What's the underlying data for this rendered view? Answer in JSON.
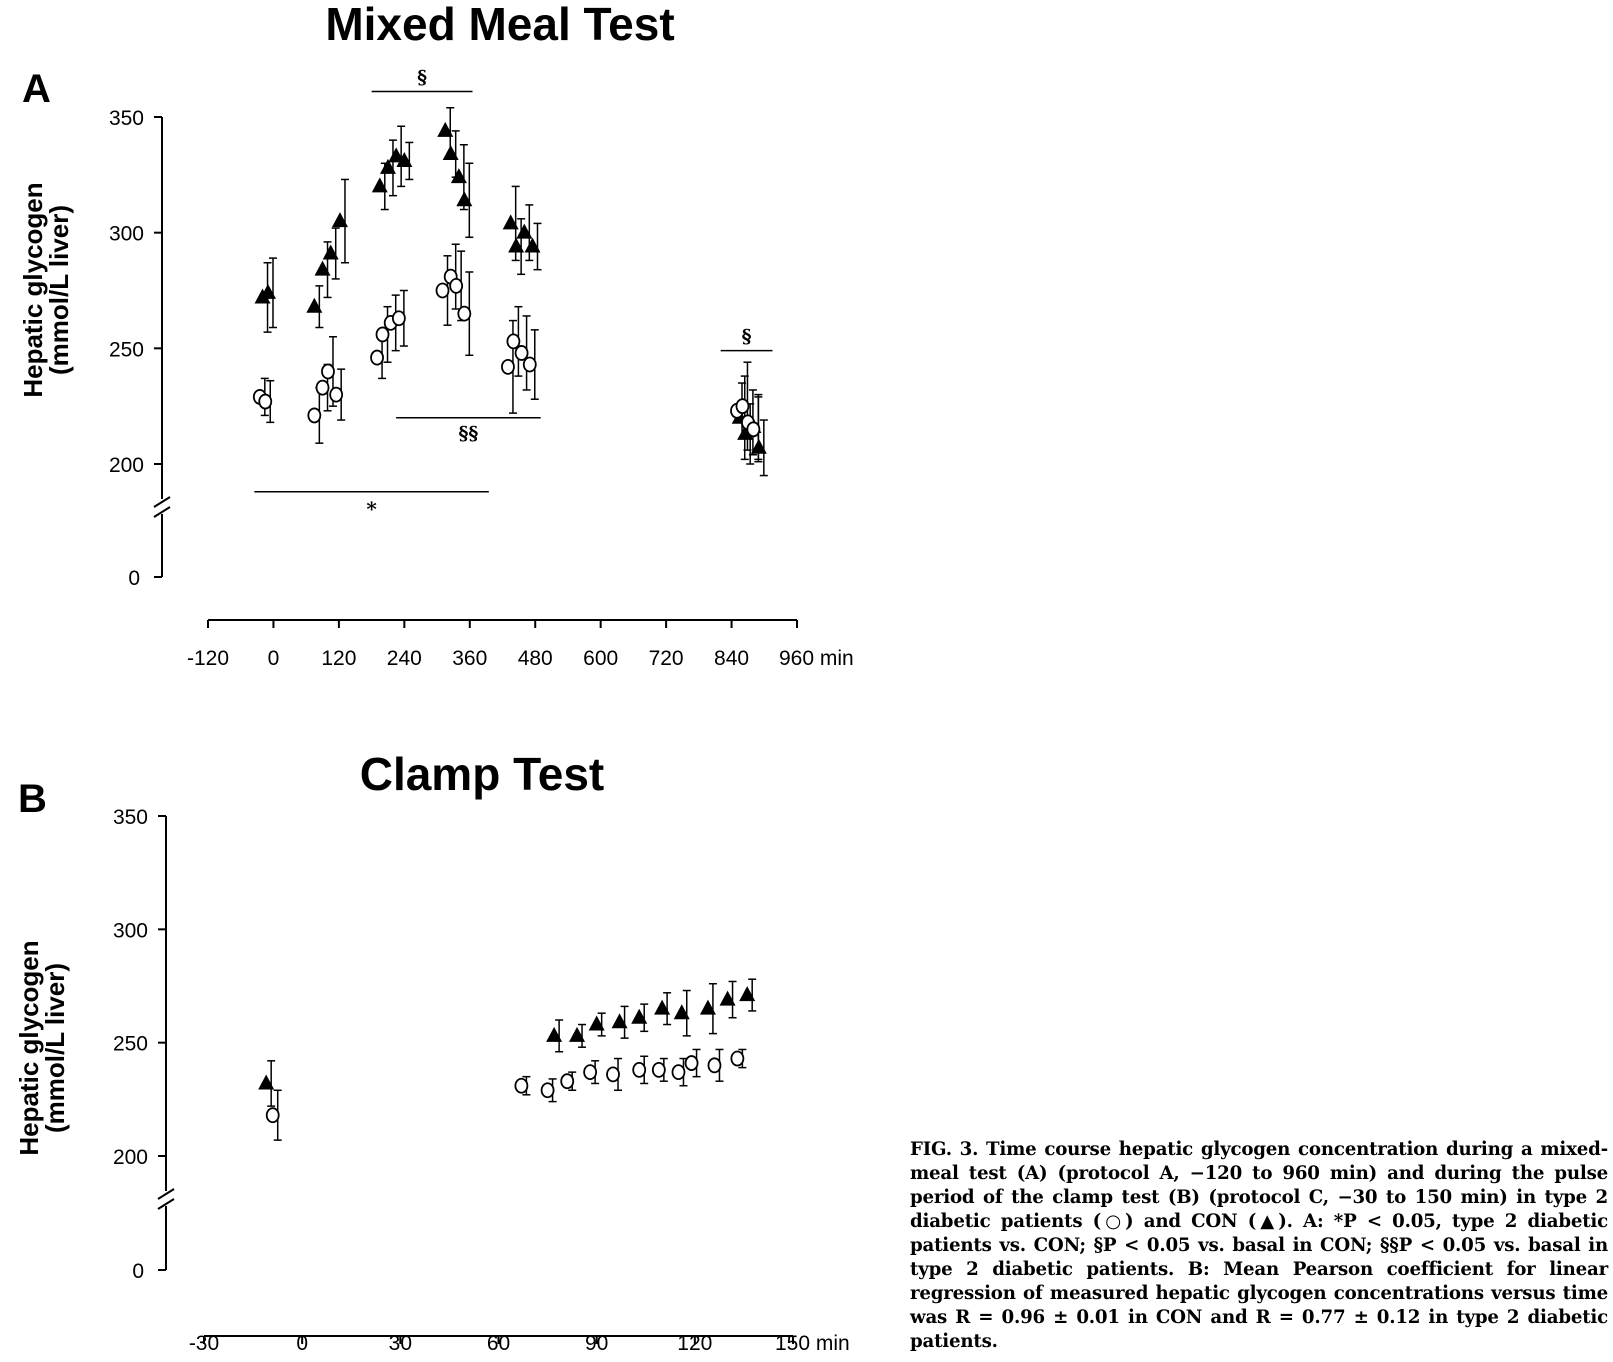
{
  "chart_data": [
    {
      "panel_letter": "A",
      "title": "Mixed Meal Test",
      "type": "scatter",
      "ylabel_line1": "Hepatic glycogen",
      "ylabel_line2": "(mmol/L liver)",
      "xunit": "min",
      "xlim": [
        -120,
        960
      ],
      "ylim": [
        200,
        350
      ],
      "yzero_label": "0",
      "xticks": [
        "-120",
        "0",
        "120",
        "240",
        "360",
        "480",
        "600",
        "720",
        "840",
        "960"
      ],
      "yticks": [
        "200",
        "250",
        "300",
        "350"
      ],
      "series": [
        {
          "marker": "filled-triangle",
          "points": [
            {
              "x": -20,
              "y": 272,
              "err": 15
            },
            {
              "x": -10,
              "y": 274,
              "err": 15
            },
            {
              "x": 75,
              "y": 268,
              "err": 9
            },
            {
              "x": 90,
              "y": 284,
              "err": 12
            },
            {
              "x": 105,
              "y": 291,
              "err": 11
            },
            {
              "x": 122,
              "y": 305,
              "err": 18
            },
            {
              "x": 195,
              "y": 320,
              "err": 10
            },
            {
              "x": 210,
              "y": 328,
              "err": 12
            },
            {
              "x": 225,
              "y": 333,
              "err": 13
            },
            {
              "x": 240,
              "y": 331,
              "err": 8
            },
            {
              "x": 315,
              "y": 344,
              "err": 10
            },
            {
              "x": 325,
              "y": 334,
              "err": 10
            },
            {
              "x": 340,
              "y": 324,
              "err": 14
            },
            {
              "x": 350,
              "y": 314,
              "err": 16
            },
            {
              "x": 435,
              "y": 304,
              "err": 16
            },
            {
              "x": 445,
              "y": 294,
              "err": 12
            },
            {
              "x": 460,
              "y": 300,
              "err": 12
            },
            {
              "x": 475,
              "y": 294,
              "err": 10
            },
            {
              "x": 855,
              "y": 220,
              "err": 18
            },
            {
              "x": 865,
              "y": 213,
              "err": 13
            },
            {
              "x": 880,
              "y": 216,
              "err": 14
            },
            {
              "x": 890,
              "y": 207,
              "err": 12
            }
          ]
        },
        {
          "marker": "open-circle",
          "points": [
            {
              "x": -25,
              "y": 229,
              "err": 8
            },
            {
              "x": -15,
              "y": 227,
              "err": 9
            },
            {
              "x": 75,
              "y": 221,
              "err": 12
            },
            {
              "x": 90,
              "y": 233,
              "err": 10
            },
            {
              "x": 100,
              "y": 240,
              "err": 15
            },
            {
              "x": 115,
              "y": 230,
              "err": 11
            },
            {
              "x": 190,
              "y": 246,
              "err": 9
            },
            {
              "x": 200,
              "y": 256,
              "err": 12
            },
            {
              "x": 215,
              "y": 261,
              "err": 12
            },
            {
              "x": 230,
              "y": 263,
              "err": 12
            },
            {
              "x": 310,
              "y": 275,
              "err": 15
            },
            {
              "x": 325,
              "y": 281,
              "err": 14
            },
            {
              "x": 335,
              "y": 277,
              "err": 15
            },
            {
              "x": 350,
              "y": 265,
              "err": 18
            },
            {
              "x": 430,
              "y": 242,
              "err": 20
            },
            {
              "x": 440,
              "y": 253,
              "err": 15
            },
            {
              "x": 455,
              "y": 248,
              "err": 16
            },
            {
              "x": 470,
              "y": 243,
              "err": 15
            },
            {
              "x": 850,
              "y": 223,
              "err": 12
            },
            {
              "x": 860,
              "y": 225,
              "err": 19
            },
            {
              "x": 870,
              "y": 218,
              "err": 14
            },
            {
              "x": 880,
              "y": 215,
              "err": 14
            }
          ]
        }
      ],
      "annotations": [
        {
          "text": "§",
          "x_from": 180,
          "x_to": 365,
          "y": 361
        },
        {
          "text": "§§",
          "x_from": 225,
          "x_to": 490,
          "y": 220
        },
        {
          "text": "*",
          "x_from": -35,
          "x_to": 395,
          "y": 188
        },
        {
          "text": "§",
          "x_from": 820,
          "x_to": 915,
          "y": 249
        }
      ]
    },
    {
      "panel_letter": "B",
      "title": "Clamp Test",
      "type": "scatter",
      "ylabel_line1": "Hepatic glycogen",
      "ylabel_line2": "(mmol/L liver)",
      "xunit": "min",
      "xlim": [
        -30,
        150
      ],
      "ylim": [
        200,
        350
      ],
      "yzero_label": "0",
      "xticks": [
        "-30",
        "0",
        "30",
        "60",
        "90",
        "120",
        "150"
      ],
      "yticks": [
        "200",
        "250",
        "300",
        "350"
      ],
      "series": [
        {
          "marker": "filled-triangle",
          "points": [
            {
              "x": -11,
              "y": 232,
              "err": 10
            },
            {
              "x": 77,
              "y": 253,
              "err": 7
            },
            {
              "x": 84,
              "y": 253,
              "err": 5
            },
            {
              "x": 90,
              "y": 258,
              "err": 5
            },
            {
              "x": 97,
              "y": 259,
              "err": 7
            },
            {
              "x": 103,
              "y": 261,
              "err": 6
            },
            {
              "x": 110,
              "y": 265,
              "err": 7
            },
            {
              "x": 116,
              "y": 263,
              "err": 10
            },
            {
              "x": 124,
              "y": 265,
              "err": 11
            },
            {
              "x": 130,
              "y": 269,
              "err": 8
            },
            {
              "x": 136,
              "y": 271,
              "err": 7
            }
          ]
        },
        {
          "marker": "open-circle",
          "points": [
            {
              "x": -9,
              "y": 218,
              "err": 11
            },
            {
              "x": 67,
              "y": 231,
              "err": 4
            },
            {
              "x": 75,
              "y": 229,
              "err": 5
            },
            {
              "x": 81,
              "y": 233,
              "err": 4
            },
            {
              "x": 88,
              "y": 237,
              "err": 5
            },
            {
              "x": 95,
              "y": 236,
              "err": 7
            },
            {
              "x": 103,
              "y": 238,
              "err": 6
            },
            {
              "x": 109,
              "y": 238,
              "err": 5
            },
            {
              "x": 115,
              "y": 237,
              "err": 6
            },
            {
              "x": 119,
              "y": 241,
              "err": 6
            },
            {
              "x": 126,
              "y": 240,
              "err": 7
            },
            {
              "x": 133,
              "y": 243,
              "err": 4
            }
          ]
        }
      ]
    }
  ],
  "caption": {
    "text": "FIG. 3. Time course hepatic glycogen concentration during a mixed-meal test (A) (protocol A, −120 to 960 min) and during the pulse period of the clamp test (B) (protocol C, −30 to 150 min) in type 2 diabetic patients (○) and CON (▲). A: *P < 0.05, type 2 diabetic patients vs. CON; §P < 0.05 vs. basal in CON; §§P < 0.05 vs. basal in type 2 diabetic patients. B: Mean Pearson coefficient for linear regression of measured hepatic glycogen concentrations versus time was R = 0.96 ± 0.01 in CON and R = 0.77 ± 0.12 in type 2 diabetic patients."
  }
}
